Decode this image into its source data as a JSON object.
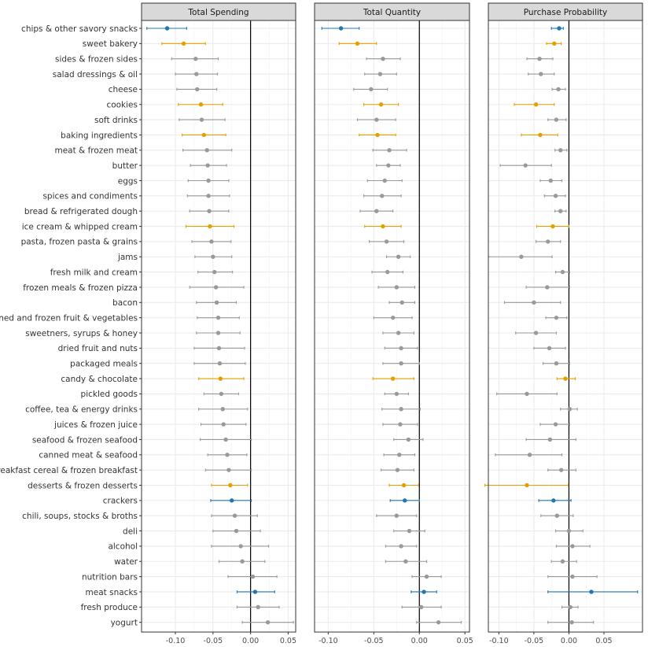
{
  "chart_data": {
    "type": "scatter",
    "subtype": "forest-plot-point-with-error-bars",
    "colors": {
      "highlight_blue": "#1f77b4",
      "highlight_orange": "#e69f00",
      "neutral": "#999999",
      "reference_line": "#000000"
    },
    "categories": [
      "chips & other savory snacks",
      "sweet bakery",
      "sides & frozen sides",
      "salad dressings & oil",
      "cheese",
      "cookies",
      "soft drinks",
      "baking ingredients",
      "meat & frozen meat",
      "butter",
      "eggs",
      "spices and condiments",
      "bread & refrigerated dough",
      "ice cream & whipped cream",
      "pasta, frozen pasta & grains",
      "jams",
      "fresh milk and cream",
      "frozen meals & frozen pizza",
      "bacon",
      "canned and frozen fruit & vegetables",
      "sweetners, syrups & honey",
      "dried fruit and nuts",
      "packaged meals",
      "candy & chocolate",
      "pickled goods",
      "coffee, tea & energy drinks",
      "juices & frozen juice",
      "seafood & frozen seafood",
      "canned meat & seafood",
      "breakfast cereal & frozen breakfast",
      "desserts & frozen desserts",
      "crackers",
      "chili, soups, stocks & broths",
      "deli",
      "alcohol",
      "water",
      "nutrition bars",
      "meat snacks",
      "fresh produce",
      "yogurt"
    ],
    "category_groups": [
      "blue",
      "orange",
      "gray",
      "gray",
      "gray",
      "orange",
      "gray",
      "orange",
      "gray",
      "gray",
      "gray",
      "gray",
      "gray",
      "orange",
      "gray",
      "gray",
      "gray",
      "gray",
      "gray",
      "gray",
      "gray",
      "gray",
      "gray",
      "orange",
      "gray",
      "gray",
      "gray",
      "gray",
      "gray",
      "gray",
      "orange",
      "blue",
      "gray",
      "gray",
      "gray",
      "gray",
      "gray",
      "blue",
      "gray",
      "gray"
    ],
    "series": [
      {
        "name": "Total Spending",
        "xlim": [
          -0.145,
          0.06
        ],
        "ticks": [
          -0.1,
          -0.05,
          0.0,
          0.05
        ],
        "tick_labels": [
          "-0.10",
          "-0.05",
          "0.00",
          "0.05"
        ],
        "estimate": [
          -0.111,
          -0.089,
          -0.073,
          -0.072,
          -0.071,
          -0.066,
          -0.065,
          -0.062,
          -0.058,
          -0.057,
          -0.056,
          -0.056,
          -0.055,
          -0.054,
          -0.052,
          -0.05,
          -0.048,
          -0.046,
          -0.045,
          -0.043,
          -0.043,
          -0.042,
          -0.041,
          -0.04,
          -0.039,
          -0.037,
          -0.036,
          -0.033,
          -0.031,
          -0.029,
          -0.027,
          -0.025,
          -0.021,
          -0.019,
          -0.013,
          -0.011,
          0.003,
          0.006,
          0.01,
          0.023
        ],
        "lower": [
          -0.138,
          -0.118,
          -0.105,
          -0.1,
          -0.098,
          -0.096,
          -0.095,
          -0.091,
          -0.09,
          -0.08,
          -0.083,
          -0.084,
          -0.081,
          -0.086,
          -0.078,
          -0.074,
          -0.07,
          -0.081,
          -0.072,
          -0.071,
          -0.072,
          -0.075,
          -0.075,
          -0.069,
          -0.062,
          -0.069,
          -0.066,
          -0.067,
          -0.057,
          -0.06,
          -0.052,
          -0.053,
          -0.052,
          -0.05,
          -0.052,
          -0.042,
          -0.03,
          -0.018,
          -0.018,
          -0.011
        ],
        "upper": [
          -0.085,
          -0.06,
          -0.043,
          -0.044,
          -0.045,
          -0.037,
          -0.034,
          -0.033,
          -0.025,
          -0.032,
          -0.029,
          -0.028,
          -0.029,
          -0.022,
          -0.026,
          -0.025,
          -0.024,
          -0.009,
          -0.019,
          -0.015,
          -0.014,
          -0.008,
          -0.007,
          -0.009,
          -0.016,
          -0.004,
          -0.006,
          0.001,
          -0.005,
          0.001,
          -0.004,
          0.001,
          0.009,
          0.013,
          0.024,
          0.019,
          0.035,
          0.032,
          0.038,
          0.057
        ]
      },
      {
        "name": "Total Quantity",
        "xlim": [
          -0.115,
          0.055
        ],
        "ticks": [
          -0.1,
          -0.05,
          0.0,
          0.05
        ],
        "tick_labels": [
          "-0.10",
          "-0.05",
          "0.00",
          "0.05"
        ],
        "estimate": [
          -0.086,
          -0.068,
          -0.04,
          -0.043,
          -0.053,
          -0.042,
          -0.047,
          -0.046,
          -0.033,
          -0.034,
          -0.038,
          -0.041,
          -0.047,
          -0.04,
          -0.036,
          -0.023,
          -0.035,
          -0.025,
          -0.019,
          -0.029,
          -0.023,
          -0.02,
          -0.02,
          -0.029,
          -0.025,
          -0.02,
          -0.021,
          -0.012,
          -0.022,
          -0.024,
          -0.017,
          -0.016,
          -0.025,
          -0.011,
          -0.02,
          -0.015,
          0.008,
          0.005,
          0.002,
          0.021
        ],
        "lower": [
          -0.107,
          -0.088,
          -0.058,
          -0.06,
          -0.072,
          -0.061,
          -0.068,
          -0.066,
          -0.051,
          -0.047,
          -0.057,
          -0.061,
          -0.065,
          -0.06,
          -0.055,
          -0.036,
          -0.052,
          -0.045,
          -0.033,
          -0.05,
          -0.04,
          -0.038,
          -0.04,
          -0.051,
          -0.038,
          -0.041,
          -0.04,
          -0.028,
          -0.039,
          -0.042,
          -0.033,
          -0.032,
          -0.047,
          -0.028,
          -0.037,
          -0.037,
          -0.008,
          -0.009,
          -0.019,
          -0.003
        ],
        "upper": [
          -0.066,
          -0.047,
          -0.021,
          -0.025,
          -0.035,
          -0.023,
          -0.026,
          -0.026,
          -0.014,
          -0.021,
          -0.019,
          -0.02,
          -0.029,
          -0.02,
          -0.017,
          -0.01,
          -0.018,
          -0.005,
          -0.005,
          -0.008,
          -0.006,
          -0.002,
          0.0,
          -0.006,
          -0.012,
          0.001,
          -0.002,
          0.004,
          -0.005,
          -0.006,
          -0.001,
          0.0,
          -0.003,
          0.006,
          -0.003,
          0.008,
          0.024,
          0.019,
          0.024,
          0.046
        ]
      },
      {
        "name": "Purchase Probability",
        "xlim": [
          -0.115,
          0.105
        ],
        "ticks": [
          -0.1,
          -0.05,
          0.0,
          0.05
        ],
        "tick_labels": [
          "-0.10",
          "-0.05",
          "0.00",
          "0.05"
        ],
        "estimate": [
          -0.014,
          -0.021,
          -0.042,
          -0.04,
          -0.015,
          -0.047,
          -0.018,
          -0.041,
          -0.012,
          -0.062,
          -0.026,
          -0.019,
          -0.012,
          -0.023,
          -0.03,
          -0.068,
          -0.009,
          -0.031,
          -0.05,
          -0.018,
          -0.047,
          -0.028,
          -0.018,
          -0.005,
          -0.06,
          0.001,
          -0.019,
          -0.027,
          -0.056,
          -0.011,
          -0.06,
          -0.022,
          -0.017,
          0.0,
          0.005,
          -0.009,
          0.005,
          0.032,
          0.002,
          0.004
        ],
        "lower": [
          -0.025,
          -0.032,
          -0.06,
          -0.058,
          -0.024,
          -0.078,
          -0.03,
          -0.068,
          -0.02,
          -0.098,
          -0.041,
          -0.035,
          -0.02,
          -0.046,
          -0.047,
          -0.115,
          -0.019,
          -0.061,
          -0.092,
          -0.033,
          -0.076,
          -0.05,
          -0.037,
          -0.017,
          -0.103,
          -0.012,
          -0.041,
          -0.061,
          -0.105,
          -0.03,
          -0.12,
          -0.043,
          -0.04,
          -0.019,
          -0.018,
          -0.025,
          -0.03,
          -0.03,
          -0.01,
          -0.03
        ],
        "upper": [
          -0.008,
          -0.011,
          -0.023,
          -0.021,
          -0.005,
          -0.021,
          -0.004,
          -0.016,
          -0.003,
          -0.025,
          -0.01,
          -0.005,
          -0.004,
          0.0,
          -0.012,
          -0.024,
          0.001,
          0.001,
          -0.012,
          -0.003,
          -0.018,
          -0.005,
          0.001,
          0.009,
          -0.017,
          0.012,
          0.001,
          0.01,
          -0.01,
          0.01,
          -0.001,
          0.003,
          0.006,
          0.02,
          0.03,
          0.011,
          0.04,
          0.098,
          0.013,
          0.035
        ]
      }
    ],
    "xlabel": "",
    "ylabel": "",
    "grid": true,
    "legend": "none"
  }
}
